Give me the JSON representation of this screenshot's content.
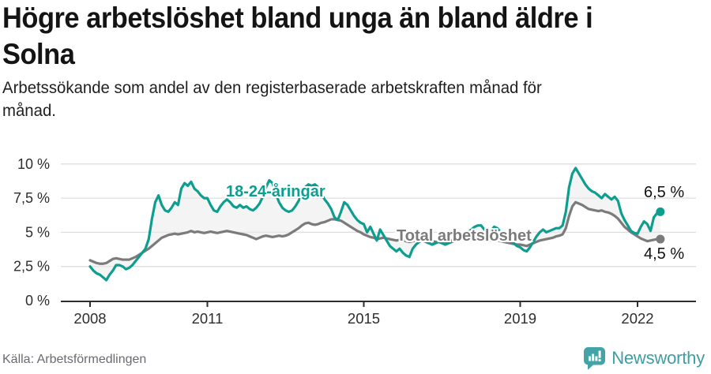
{
  "header": {
    "title_lines": [
      "Högre arbetslöshet bland unga än bland äldre i",
      "Solna"
    ],
    "subtitle_lines": [
      "Arbetssökande som andel av den registerbaserade arbetskraften månad för",
      "månad."
    ]
  },
  "chart_data": {
    "type": "line",
    "title": "Högre arbetslöshet bland unga än bland äldre i Solna",
    "subtitle": "Arbetssökande som andel av den registerbaserade arbetskraften månad för månad.",
    "source": "Källa: Arbetsförmedlingen",
    "unit": "%",
    "x_start_year": 2008,
    "months_per_point": 1,
    "ylim": [
      0,
      10
    ],
    "grid": true,
    "fill_between_series": true,
    "legend_position": "inline-labels",
    "y_ticks": [
      {
        "value": 0,
        "label": "0 %"
      },
      {
        "value": 2.5,
        "label": "2,5 %"
      },
      {
        "value": 5,
        "label": "5 %"
      },
      {
        "value": 7.5,
        "label": "7,5 %"
      },
      {
        "value": 10,
        "label": "10 %"
      }
    ],
    "x_ticks": [
      {
        "year": 2008,
        "label": "2008"
      },
      {
        "year": 2011,
        "label": "2011"
      },
      {
        "year": 2015,
        "label": "2015"
      },
      {
        "year": 2019,
        "label": "2019"
      },
      {
        "year": 2022,
        "label": "2022"
      }
    ],
    "series": [
      {
        "name": "18-24-åringar",
        "color": "#0d9e8f",
        "end_label": "6,5 %",
        "values": [
          2.5,
          2.2,
          2.0,
          1.9,
          1.7,
          1.5,
          1.9,
          2.2,
          2.6,
          2.6,
          2.5,
          2.3,
          2.4,
          2.6,
          2.9,
          3.2,
          3.5,
          3.8,
          4.5,
          6.0,
          7.2,
          7.7,
          7.0,
          6.6,
          6.5,
          6.8,
          7.2,
          7.0,
          8.2,
          8.6,
          8.4,
          8.7,
          8.2,
          8.0,
          7.7,
          7.5,
          7.5,
          7.0,
          6.6,
          6.5,
          6.9,
          7.2,
          7.4,
          7.2,
          6.9,
          6.8,
          7.0,
          6.8,
          6.9,
          6.7,
          6.6,
          6.8,
          7.1,
          7.6,
          8.3,
          8.8,
          8.6,
          7.8,
          7.2,
          6.8,
          6.6,
          6.5,
          6.6,
          6.9,
          7.3,
          7.8,
          8.3,
          8.5,
          8.4,
          8.5,
          8.3,
          7.8,
          7.4,
          7.1,
          6.7,
          6.1,
          5.9,
          6.5,
          7.2,
          7.0,
          6.6,
          6.2,
          5.9,
          5.7,
          5.6,
          5.0,
          5.4,
          4.9,
          4.4,
          5.2,
          4.8,
          4.4,
          4.0,
          3.8,
          3.6,
          3.8,
          3.5,
          3.3,
          3.2,
          3.8,
          4.1,
          4.3,
          4.4,
          4.3,
          4.2,
          4.1,
          4.2,
          4.3,
          4.2,
          4.1,
          4.2,
          4.3,
          4.4,
          4.5,
          4.7,
          4.9,
          5.0,
          5.2,
          5.4,
          5.5,
          5.5,
          5.2,
          4.9,
          5.1,
          5.4,
          5.3,
          5.0,
          4.8,
          4.6,
          4.4,
          4.2,
          4.0,
          3.9,
          3.7,
          3.6,
          3.9,
          4.3,
          4.7,
          5.0,
          5.2,
          5.0,
          5.1,
          5.2,
          5.3,
          5.3,
          5.5,
          6.5,
          8.3,
          9.3,
          9.7,
          9.3,
          8.9,
          8.5,
          8.2,
          8.0,
          7.9,
          7.7,
          7.5,
          7.8,
          7.6,
          7.4,
          7.6,
          7.3,
          6.4,
          5.9,
          5.5,
          5.1,
          4.95,
          4.9,
          5.4,
          5.8,
          5.6,
          5.1,
          6.1,
          6.4,
          6.5
        ]
      },
      {
        "name": "Total arbetslöshet",
        "color": "#7b7b7b",
        "end_label": "4,5 %",
        "values": [
          2.95,
          2.85,
          2.75,
          2.7,
          2.7,
          2.75,
          2.9,
          3.05,
          3.1,
          3.05,
          3.0,
          3.0,
          3.0,
          3.1,
          3.2,
          3.35,
          3.5,
          3.65,
          3.8,
          4.0,
          4.2,
          4.4,
          4.6,
          4.7,
          4.8,
          4.85,
          4.9,
          4.85,
          4.9,
          4.95,
          5.0,
          5.1,
          5.0,
          5.05,
          5.0,
          4.95,
          5.0,
          5.05,
          5.0,
          4.95,
          5.0,
          5.05,
          5.1,
          5.05,
          5.0,
          4.95,
          4.9,
          4.85,
          4.8,
          4.7,
          4.6,
          4.5,
          4.6,
          4.7,
          4.75,
          4.7,
          4.65,
          4.7,
          4.75,
          4.7,
          4.75,
          4.85,
          5.0,
          5.15,
          5.3,
          5.5,
          5.65,
          5.7,
          5.6,
          5.55,
          5.6,
          5.7,
          5.75,
          5.85,
          5.95,
          5.95,
          5.9,
          5.85,
          5.7,
          5.55,
          5.4,
          5.25,
          5.1,
          5.0,
          4.85,
          4.75,
          4.65,
          4.6,
          4.5,
          4.55,
          4.6,
          4.55,
          4.5,
          4.45,
          4.4,
          4.45,
          4.4,
          4.35,
          4.3,
          4.35,
          4.4,
          4.45,
          4.5,
          4.45,
          4.4,
          4.35,
          4.3,
          4.3,
          4.3,
          4.3,
          4.35,
          4.4,
          4.4,
          4.45,
          4.5,
          4.5,
          4.45,
          4.4,
          4.4,
          4.45,
          4.5,
          4.45,
          4.4,
          4.4,
          4.45,
          4.4,
          4.35,
          4.3,
          4.25,
          4.2,
          4.15,
          4.1,
          4.1,
          4.05,
          4.0,
          4.1,
          4.2,
          4.3,
          4.4,
          4.45,
          4.5,
          4.55,
          4.6,
          4.7,
          4.75,
          4.85,
          5.3,
          6.2,
          6.9,
          7.2,
          7.1,
          7.0,
          6.85,
          6.7,
          6.65,
          6.6,
          6.55,
          6.6,
          6.5,
          6.45,
          6.35,
          6.2,
          6.0,
          5.7,
          5.4,
          5.2,
          5.0,
          4.85,
          4.7,
          4.55,
          4.45,
          4.35,
          4.4,
          4.45,
          4.5,
          4.5
        ]
      }
    ]
  },
  "footer": {
    "source": "Källa: Arbetsförmedlingen",
    "brand": "Newsworthy"
  },
  "colors": {
    "youth_line": "#0d9e8f",
    "total_line": "#7b7b7b",
    "fill_between": "#e9e9e9",
    "grid": "#dedede",
    "axis": "#2d2d2d",
    "brand_teal": "#3e9ea3",
    "end_label_text": "#111111"
  }
}
